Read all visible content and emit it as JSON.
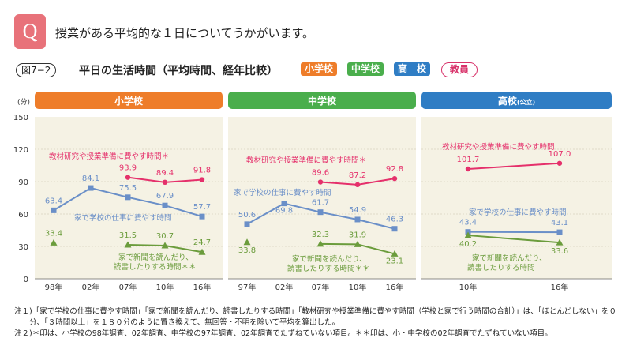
{
  "header": {
    "q_badge": "Q",
    "question": "授業がある平均的な１日についてうかがいます。",
    "figure_tag": "図7−2",
    "figure_title": "平日の生活時間（平均時間、経年比較）",
    "tags": [
      "小学校",
      "中学校",
      "高　校",
      "教員"
    ]
  },
  "colors": {
    "elementary": "#ee7d2a",
    "junior_high": "#4aae4c",
    "high_school": "#2f7dc4",
    "panel_bg": "#f5f2e4",
    "series_pink": "#e5306b",
    "series_blue": "#6a8fc8",
    "series_green": "#6b9c3c"
  },
  "chart_data": [
    {
      "type": "line",
      "title": "小学校",
      "ylabel": "(分)",
      "ylim": [
        0,
        150
      ],
      "yticks": [
        "0",
        "30",
        "60",
        "90",
        "120",
        "150"
      ],
      "categories": [
        "98年",
        "02年",
        "07年",
        "10年",
        "16年"
      ],
      "series": [
        {
          "name": "教材研究や授業準備に費やす時間＊",
          "values": [
            null,
            null,
            93.9,
            89.4,
            91.8
          ],
          "labels": [
            "",
            "",
            "93.9",
            "89.4",
            "91.8"
          ]
        },
        {
          "name": "家で学校の仕事に費やす時間",
          "values": [
            63.4,
            84.1,
            75.5,
            67.9,
            57.7
          ],
          "labels": [
            "63.4",
            "84.1",
            "75.5",
            "67.9",
            "57.7"
          ]
        },
        {
          "name": "家で新聞を読んだり、読書したりする時間＊＊",
          "values": [
            33.4,
            null,
            31.5,
            30.7,
            24.7
          ],
          "labels": [
            "33.4",
            "",
            "31.5",
            "30.7",
            "24.7"
          ]
        }
      ]
    },
    {
      "type": "line",
      "title": "中学校",
      "ylim": [
        0,
        150
      ],
      "categories": [
        "97年",
        "02年",
        "07年",
        "10年",
        "16年"
      ],
      "series": [
        {
          "name": "教材研究や授業準備に費やす時間＊",
          "values": [
            null,
            null,
            89.6,
            87.2,
            92.8
          ],
          "labels": [
            "",
            "",
            "89.6",
            "87.2",
            "92.8"
          ]
        },
        {
          "name": "家で学校の仕事に費やす時間",
          "values": [
            50.6,
            69.8,
            61.7,
            54.9,
            46.3
          ],
          "labels": [
            "50.6",
            "69.8",
            "61.7",
            "54.9",
            "46.3"
          ]
        },
        {
          "name": "家で新聞を読んだり、読書したりする時間＊＊",
          "values": [
            33.8,
            null,
            32.3,
            31.9,
            23.1
          ],
          "labels": [
            "33.8",
            "",
            "32.3",
            "31.9",
            "23.1"
          ]
        }
      ]
    },
    {
      "type": "line",
      "title": "高校",
      "title_suffix": "(公立)",
      "ylim": [
        0,
        150
      ],
      "categories": [
        "10年",
        "16年"
      ],
      "series": [
        {
          "name": "教材研究や授業準備に費やす時間",
          "values": [
            101.7,
            107.0
          ],
          "labels": [
            "101.7",
            "107.0"
          ]
        },
        {
          "name": "家で学校の仕事に費やす時間",
          "values": [
            43.4,
            43.1
          ],
          "labels": [
            "43.4",
            "43.1"
          ]
        },
        {
          "name": "家で新聞を読んだり、読書したりする時間",
          "values": [
            40.2,
            33.6
          ],
          "labels": [
            "40.2",
            "33.6"
          ]
        }
      ]
    }
  ],
  "notes": [
    "注１)「家で学校の仕事に費やす時間」「家で新聞を読んだり、読書したりする時間」「教材研究や授業準備に費やす時間（学校と家で行う時間の合計）」は、「ほとんどしない」を０",
    "　　分、「３時間以上」を１８０分のように置き換えて、無回答・不明を除いて平均を算出した。",
    "注２)＊印は、小学校の98年調査、02年調査、中学校の97年調査、02年調査でたずねていない項目。＊＊印は、小・中学校の02年調査でたずねていない項目。"
  ]
}
